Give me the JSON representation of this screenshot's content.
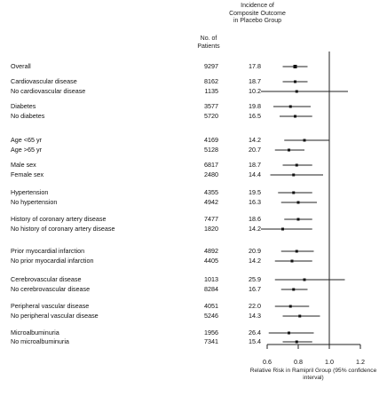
{
  "chart_data": {
    "type": "forest",
    "title": "",
    "col_header_patients": "No. of Patients",
    "col_header_incidence": "Incidence of Composite Outcome in Placebo Group",
    "xlabel": "Relative Risk in Ramipril Group (95% confidence interval)",
    "xticks": [
      "0.6",
      "0.8",
      "1.0",
      "1.2"
    ],
    "xlim": [
      0.5,
      1.3
    ],
    "reference_line": 1.0,
    "rows": [
      {
        "label": "Overall",
        "patients": "9297",
        "incidence": "17.8",
        "rr": 0.78,
        "lo": 0.7,
        "hi": 0.86
      },
      {
        "label": "Cardiovascular disease",
        "patients": "8162",
        "incidence": "18.7",
        "rr": 0.78,
        "lo": 0.7,
        "hi": 0.86
      },
      {
        "label": "No cardiovascular disease",
        "patients": "1135",
        "incidence": "10.2",
        "rr": 0.79,
        "lo": 0.56,
        "hi": 1.12
      },
      {
        "label": "Diabetes",
        "patients": "3577",
        "incidence": "19.8",
        "rr": 0.75,
        "lo": 0.64,
        "hi": 0.88
      },
      {
        "label": "No diabetes",
        "patients": "5720",
        "incidence": "16.5",
        "rr": 0.78,
        "lo": 0.68,
        "hi": 0.89
      },
      {
        "label": "Age <65 yr",
        "patients": "4169",
        "incidence": "14.2",
        "rr": 0.84,
        "lo": 0.71,
        "hi": 1.0
      },
      {
        "label": "Age >65 yr",
        "patients": "5128",
        "incidence": "20.7",
        "rr": 0.74,
        "lo": 0.65,
        "hi": 0.84
      },
      {
        "label": "Male sex",
        "patients": "6817",
        "incidence": "18.7",
        "rr": 0.79,
        "lo": 0.7,
        "hi": 0.89
      },
      {
        "label": "Female sex",
        "patients": "2480",
        "incidence": "14.4",
        "rr": 0.77,
        "lo": 0.62,
        "hi": 0.96
      },
      {
        "label": "Hypertension",
        "patients": "4355",
        "incidence": "19.5",
        "rr": 0.77,
        "lo": 0.67,
        "hi": 0.89
      },
      {
        "label": "No hypertension",
        "patients": "4942",
        "incidence": "16.3",
        "rr": 0.8,
        "lo": 0.69,
        "hi": 0.92
      },
      {
        "label": "History of coronary artery disease",
        "patients": "7477",
        "incidence": "18.6",
        "rr": 0.8,
        "lo": 0.71,
        "hi": 0.89
      },
      {
        "label": "No history of coronary artery disease",
        "patients": "1820",
        "incidence": "14.2",
        "rr": 0.7,
        "lo": 0.56,
        "hi": 0.89
      },
      {
        "label": "Prior myocardial infarction",
        "patients": "4892",
        "incidence": "20.9",
        "rr": 0.79,
        "lo": 0.69,
        "hi": 0.9
      },
      {
        "label": "No prior myocardial infarction",
        "patients": "4405",
        "incidence": "14.2",
        "rr": 0.76,
        "lo": 0.65,
        "hi": 0.89
      },
      {
        "label": "Cerebrovascular disease",
        "patients": "1013",
        "incidence": "25.9",
        "rr": 0.84,
        "lo": 0.65,
        "hi": 1.1
      },
      {
        "label": "No cerebrovascular disease",
        "patients": "8284",
        "incidence": "16.7",
        "rr": 0.77,
        "lo": 0.69,
        "hi": 0.86
      },
      {
        "label": "Peripheral vascular disease",
        "patients": "4051",
        "incidence": "22.0",
        "rr": 0.75,
        "lo": 0.65,
        "hi": 0.87
      },
      {
        "label": "No peripheral vascular disease",
        "patients": "5246",
        "incidence": "14.3",
        "rr": 0.81,
        "lo": 0.7,
        "hi": 0.94
      },
      {
        "label": "Microalbuminuria",
        "patients": "1956",
        "incidence": "26.4",
        "rr": 0.74,
        "lo": 0.61,
        "hi": 0.9
      },
      {
        "label": "No microalbuminuria",
        "patients": "7341",
        "incidence": "15.4",
        "rr": 0.79,
        "lo": 0.7,
        "hi": 0.89
      }
    ]
  }
}
